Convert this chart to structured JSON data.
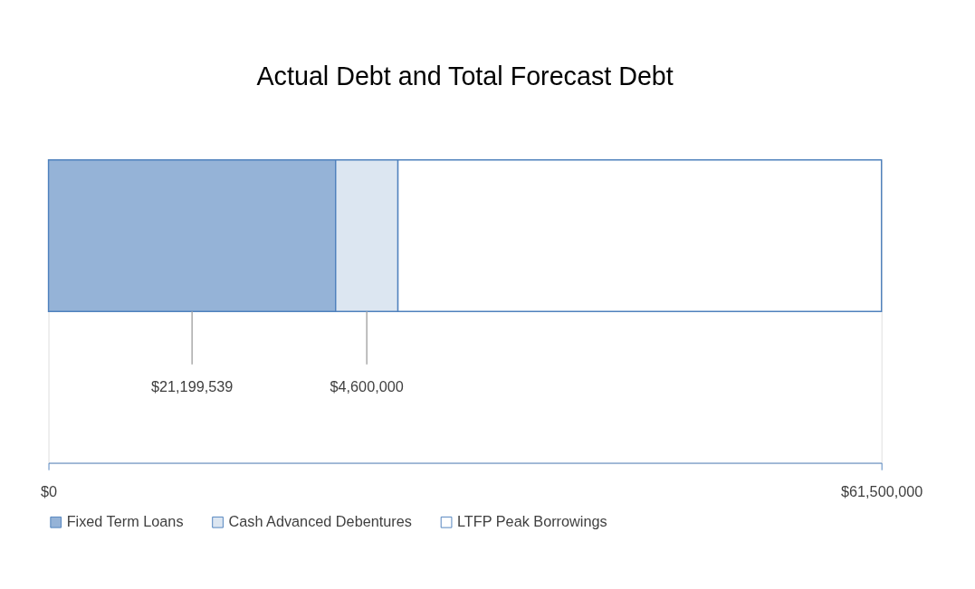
{
  "chart_data": {
    "type": "bar",
    "title": "Actual Debt and Total Forecast Debt",
    "orientation": "horizontal",
    "stacked": true,
    "categories": [
      null
    ],
    "series": [
      {
        "name": "Fixed Term Loans",
        "color": "#95b3d7",
        "values": [
          21199539
        ],
        "value_labels": [
          "$21,199,539"
        ]
      },
      {
        "name": "Cash Advanced Debentures",
        "color": "#dce6f1",
        "values": [
          4600000
        ],
        "value_labels": [
          "$4,600,000"
        ]
      },
      {
        "name": "LTFP Peak Borrowings",
        "color": "#ffffff",
        "values": [
          35700000
        ],
        "value_labels": [
          null
        ]
      }
    ],
    "xlim": [
      0,
      61500000
    ],
    "xticks": [
      {
        "value": 0,
        "label": "$0"
      },
      {
        "value": 61500000,
        "label": "$61,500,000"
      }
    ],
    "legend": "bottom"
  }
}
